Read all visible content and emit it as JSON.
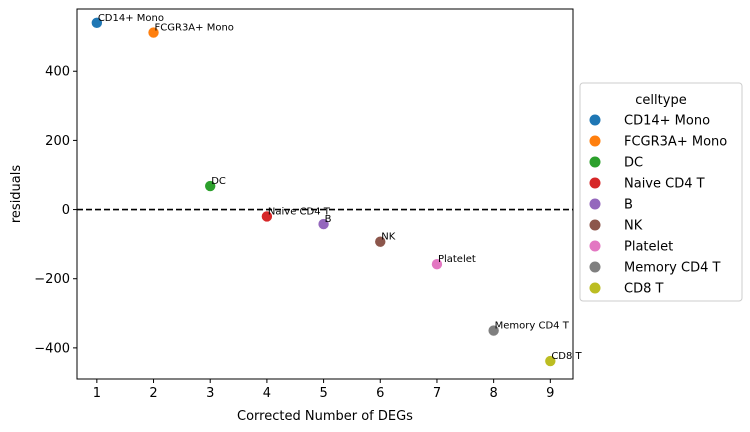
{
  "chart_data": {
    "type": "scatter",
    "xlabel": "Corrected Number of DEGs",
    "ylabel": "residuals",
    "xlim": [
      0.65,
      9.4
    ],
    "ylim": [
      -490,
      580
    ],
    "xticks": [
      1,
      2,
      3,
      4,
      5,
      6,
      7,
      8,
      9
    ],
    "yticks": [
      -400,
      -200,
      0,
      200,
      400
    ],
    "hline": 0,
    "grid": false,
    "legend": {
      "title": "celltype",
      "placement": "right-outside"
    },
    "points": [
      {
        "label": "CD14+ Mono",
        "x": 1,
        "y": 540,
        "color": "#1f77b4"
      },
      {
        "label": "FCGR3A+ Mono",
        "x": 2,
        "y": 512,
        "color": "#ff7f0e"
      },
      {
        "label": "DC",
        "x": 3,
        "y": 68,
        "color": "#2ca02c"
      },
      {
        "label": "Naive CD4 T",
        "x": 4,
        "y": -20,
        "color": "#d62728"
      },
      {
        "label": "B",
        "x": 5,
        "y": -42,
        "color": "#9467bd"
      },
      {
        "label": "NK",
        "x": 6,
        "y": -93,
        "color": "#8c564b"
      },
      {
        "label": "Platelet",
        "x": 7,
        "y": -158,
        "color": "#e377c2"
      },
      {
        "label": "Memory CD4 T",
        "x": 8,
        "y": -350,
        "color": "#7f7f7f"
      },
      {
        "label": "CD8 T",
        "x": 9,
        "y": -438,
        "color": "#bcbd22"
      }
    ]
  }
}
